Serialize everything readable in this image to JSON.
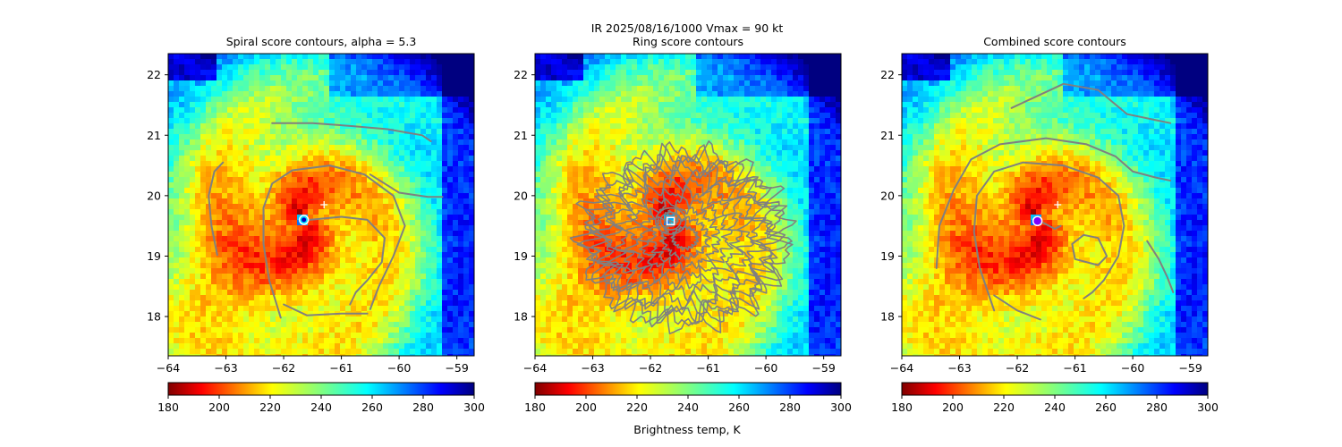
{
  "figure": {
    "suptitle_line1": "IR  2025/08/16/1000    Vmax = 90 kt",
    "colorbar_label": "Brightness temp, K"
  },
  "colors": {
    "contour": "#808080",
    "marker": "#ffffff",
    "colormap": "jet_r"
  },
  "chart_data": [
    {
      "type": "heatmap",
      "title": "Spiral score contours, alpha =  5.3",
      "xlim": [
        -64.0,
        -58.7
      ],
      "ylim": [
        17.35,
        22.35
      ],
      "x_ticks": [
        -64,
        -63,
        -62,
        -61,
        -60,
        -59
      ],
      "x_tick_labels": [
        "−64",
        "−63",
        "−62",
        "−61",
        "−60",
        "−59"
      ],
      "y_ticks": [
        18,
        19,
        20,
        21,
        22
      ],
      "y_tick_labels": [
        "18",
        "19",
        "20",
        "21",
        "22"
      ],
      "colorbar": {
        "vmin": 180,
        "vmax": 300,
        "ticks": [
          180,
          200,
          220,
          240,
          260,
          280,
          300
        ],
        "tick_labels": [
          "180",
          "200",
          "220",
          "240",
          "260",
          "280",
          "300"
        ]
      },
      "center_marker": {
        "lon": -61.65,
        "lat": 19.6,
        "style": "eye"
      },
      "plus_marker": {
        "lon": -61.3,
        "lat": 19.85
      },
      "contours": [
        [
          [
            -62.05,
            17.98
          ],
          [
            -62.25,
            18.6
          ],
          [
            -62.35,
            19.2
          ],
          [
            -62.35,
            19.8
          ],
          [
            -62.2,
            20.2
          ],
          [
            -61.85,
            20.42
          ],
          [
            -61.2,
            20.5
          ],
          [
            -60.6,
            20.35
          ],
          [
            -60.1,
            20.0
          ],
          [
            -59.9,
            19.5
          ],
          [
            -60.1,
            19.0
          ],
          [
            -60.35,
            18.5
          ],
          [
            -60.5,
            18.12
          ]
        ],
        [
          [
            -61.55,
            19.6
          ],
          [
            -61.0,
            19.65
          ],
          [
            -60.55,
            19.6
          ],
          [
            -60.25,
            19.3
          ],
          [
            -60.3,
            18.9
          ],
          [
            -60.55,
            18.6
          ],
          [
            -60.75,
            18.4
          ],
          [
            -60.85,
            18.2
          ]
        ],
        [
          [
            -63.15,
            19.02
          ],
          [
            -63.25,
            19.5
          ],
          [
            -63.3,
            20.0
          ],
          [
            -63.2,
            20.4
          ],
          [
            -63.05,
            20.55
          ]
        ],
        [
          [
            -62.2,
            21.2
          ],
          [
            -61.5,
            21.2
          ],
          [
            -60.8,
            21.15
          ],
          [
            -60.2,
            21.1
          ],
          [
            -59.6,
            21.0
          ],
          [
            -59.45,
            20.9
          ]
        ],
        [
          [
            -60.5,
            20.35
          ],
          [
            -60.0,
            20.05
          ],
          [
            -59.5,
            19.98
          ],
          [
            -59.25,
            19.98
          ]
        ],
        [
          [
            -62.0,
            18.2
          ],
          [
            -61.6,
            18.02
          ],
          [
            -61.0,
            18.05
          ],
          [
            -60.55,
            18.05
          ]
        ]
      ]
    },
    {
      "type": "heatmap",
      "title": "Ring score contours",
      "xlim": [
        -64.0,
        -58.7
      ],
      "ylim": [
        17.35,
        22.35
      ],
      "x_ticks": [
        -64,
        -63,
        -62,
        -61,
        -60,
        -59
      ],
      "x_tick_labels": [
        "−64",
        "−63",
        "−62",
        "−61",
        "−60",
        "−59"
      ],
      "y_ticks": [
        18,
        19,
        20,
        21,
        22
      ],
      "y_tick_labels": [
        "18",
        "19",
        "20",
        "21",
        "22"
      ],
      "colorbar": {
        "vmin": 180,
        "vmax": 300,
        "ticks": [
          180,
          200,
          220,
          240,
          260,
          280,
          300
        ],
        "tick_labels": [
          "180",
          "200",
          "220",
          "240",
          "260",
          "280",
          "300"
        ]
      },
      "center_marker": {
        "lon": -61.65,
        "lat": 19.58,
        "style": "square"
      },
      "plus_marker": null,
      "ring_field": {
        "lon": -61.4,
        "lat": 19.3,
        "lon_radius": 1.75,
        "lat_radius": 1.45,
        "rings": [
          0.12,
          0.22,
          0.32,
          0.42,
          0.52,
          0.62,
          0.72,
          0.8,
          0.87,
          0.93,
          0.98
        ]
      },
      "contours": []
    },
    {
      "type": "heatmap",
      "title": "Combined score contours",
      "xlim": [
        -64.0,
        -58.7
      ],
      "ylim": [
        17.35,
        22.35
      ],
      "x_ticks": [
        -64,
        -63,
        -62,
        -61,
        -60,
        -59
      ],
      "x_tick_labels": [
        "−64",
        "−63",
        "−62",
        "−61",
        "−60",
        "−59"
      ],
      "y_ticks": [
        18,
        19,
        20,
        21,
        22
      ],
      "y_tick_labels": [
        "18",
        "19",
        "20",
        "21",
        "22"
      ],
      "colorbar": {
        "vmin": 180,
        "vmax": 300,
        "ticks": [
          180,
          200,
          220,
          240,
          260,
          280,
          300
        ],
        "tick_labels": [
          "180",
          "200",
          "220",
          "240",
          "260",
          "280",
          "300"
        ]
      },
      "center_marker": {
        "lon": -61.65,
        "lat": 19.58,
        "style": "circle"
      },
      "plus_marker": {
        "lon": -61.3,
        "lat": 19.85
      },
      "contours": [
        [
          [
            -62.4,
            18.1
          ],
          [
            -62.65,
            18.8
          ],
          [
            -62.75,
            19.4
          ],
          [
            -62.7,
            20.0
          ],
          [
            -62.4,
            20.4
          ],
          [
            -61.9,
            20.55
          ],
          [
            -61.2,
            20.5
          ],
          [
            -60.6,
            20.3
          ],
          [
            -60.25,
            20.0
          ],
          [
            -60.15,
            19.5
          ],
          [
            -60.25,
            19.0
          ],
          [
            -60.5,
            18.6
          ],
          [
            -60.7,
            18.4
          ],
          [
            -60.85,
            18.3
          ]
        ],
        [
          [
            -62.4,
            18.35
          ],
          [
            -62.0,
            18.1
          ],
          [
            -61.6,
            17.95
          ]
        ],
        [
          [
            -63.4,
            18.8
          ],
          [
            -63.35,
            19.5
          ],
          [
            -63.1,
            20.1
          ],
          [
            -62.8,
            20.6
          ],
          [
            -62.3,
            20.85
          ],
          [
            -61.5,
            20.95
          ],
          [
            -60.8,
            20.85
          ],
          [
            -60.3,
            20.65
          ],
          [
            -60.0,
            20.4
          ],
          [
            -59.6,
            20.3
          ],
          [
            -59.35,
            20.25
          ]
        ],
        [
          [
            -61.0,
            18.95
          ],
          [
            -60.6,
            18.85
          ],
          [
            -60.45,
            19.0
          ],
          [
            -60.6,
            19.3
          ],
          [
            -60.85,
            19.35
          ],
          [
            -61.05,
            19.2
          ],
          [
            -61.0,
            18.95
          ]
        ],
        [
          [
            -61.55,
            19.55
          ],
          [
            -61.35,
            19.45
          ],
          [
            -61.25,
            19.5
          ]
        ],
        [
          [
            -62.1,
            21.45
          ],
          [
            -61.2,
            21.85
          ],
          [
            -60.6,
            21.75
          ],
          [
            -60.1,
            21.35
          ],
          [
            -59.6,
            21.25
          ],
          [
            -59.35,
            21.2
          ]
        ],
        [
          [
            -59.75,
            19.25
          ],
          [
            -59.55,
            18.95
          ],
          [
            -59.4,
            18.65
          ],
          [
            -59.3,
            18.4
          ]
        ]
      ]
    }
  ]
}
